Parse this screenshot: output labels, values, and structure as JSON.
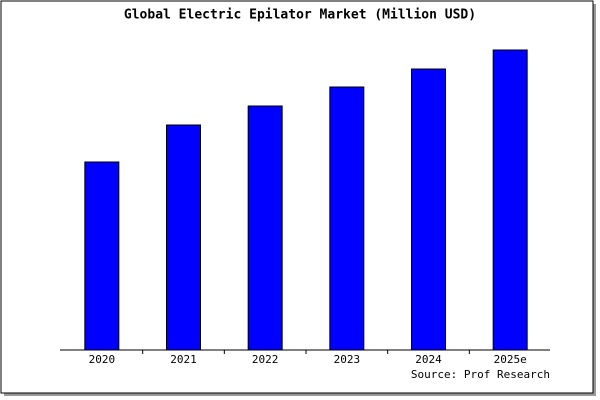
{
  "chart_data": {
    "type": "bar",
    "title": "Global Electric Epilator Market (Million USD)",
    "categories": [
      "2020",
      "2021",
      "2022",
      "2023",
      "2024",
      "2025e"
    ],
    "values": [
      188,
      225,
      244,
      263,
      281,
      300
    ],
    "color": "#0000ff",
    "source": "Source: Prof Research"
  }
}
